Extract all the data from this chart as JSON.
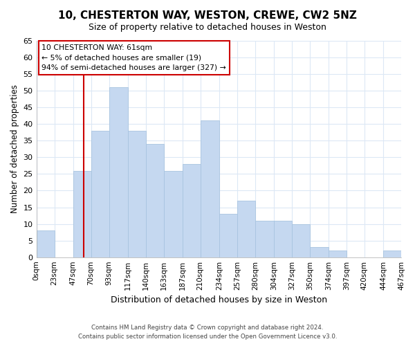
{
  "title": "10, CHESTERTON WAY, WESTON, CREWE, CW2 5NZ",
  "subtitle": "Size of property relative to detached houses in Weston",
  "xlabel": "Distribution of detached houses by size in Weston",
  "ylabel": "Number of detached properties",
  "bar_color": "#c5d8f0",
  "bar_edge_color": "#a8c4e0",
  "vline_color": "#cc0000",
  "vline_x": 61,
  "bin_edges": [
    0,
    23,
    47,
    70,
    93,
    117,
    140,
    163,
    187,
    210,
    234,
    257,
    280,
    304,
    327,
    350,
    374,
    397,
    420,
    444,
    467
  ],
  "bin_labels": [
    "0sqm",
    "23sqm",
    "47sqm",
    "70sqm",
    "93sqm",
    "117sqm",
    "140sqm",
    "163sqm",
    "187sqm",
    "210sqm",
    "234sqm",
    "257sqm",
    "280sqm",
    "304sqm",
    "327sqm",
    "350sqm",
    "374sqm",
    "397sqm",
    "420sqm",
    "444sqm",
    "467sqm"
  ],
  "counts": [
    8,
    0,
    26,
    38,
    51,
    38,
    34,
    26,
    28,
    41,
    13,
    17,
    11,
    11,
    10,
    3,
    2,
    0,
    0,
    2
  ],
  "ylim": [
    0,
    65
  ],
  "yticks": [
    0,
    5,
    10,
    15,
    20,
    25,
    30,
    35,
    40,
    45,
    50,
    55,
    60,
    65
  ],
  "annotation_title": "10 CHESTERTON WAY: 61sqm",
  "annotation_line1": "← 5% of detached houses are smaller (19)",
  "annotation_line2": "94% of semi-detached houses are larger (327) →",
  "annotation_box_color": "#ffffff",
  "annotation_box_edge": "#cc0000",
  "footer_line1": "Contains HM Land Registry data © Crown copyright and database right 2024.",
  "footer_line2": "Contains public sector information licensed under the Open Government Licence v3.0.",
  "background_color": "#ffffff",
  "grid_color": "#dce8f5"
}
